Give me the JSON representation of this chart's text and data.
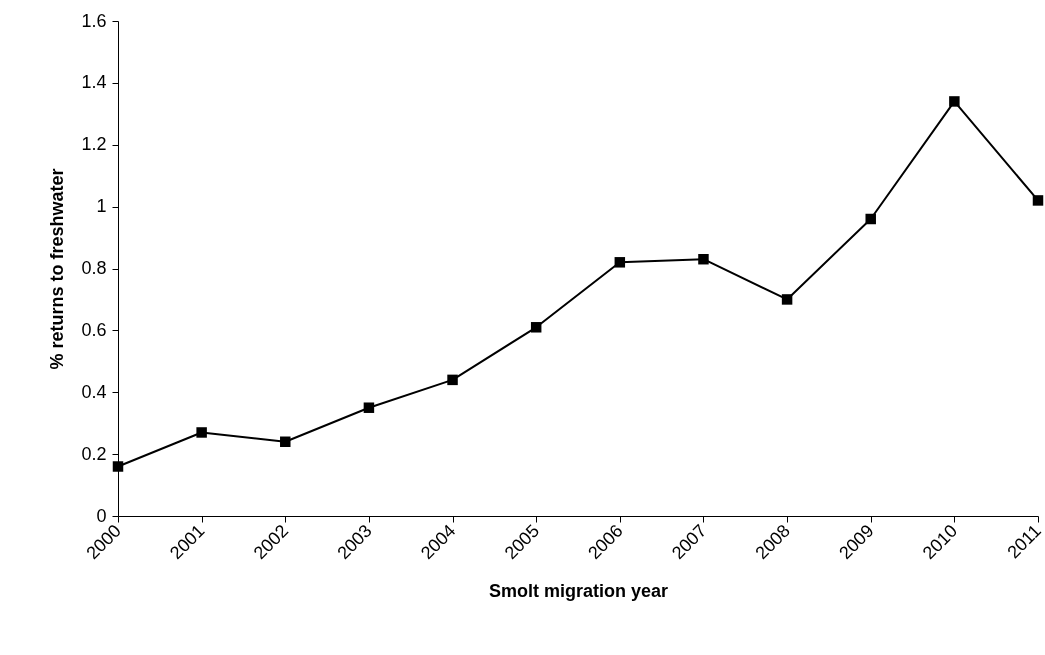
{
  "chart_data": {
    "type": "line",
    "xlabel": "Smolt migration year",
    "ylabel": "% returns to freshwater",
    "categories": [
      "2000",
      "2001",
      "2002",
      "2003",
      "2004",
      "2005",
      "2006",
      "2007",
      "2008",
      "2009",
      "2010",
      "2011"
    ],
    "series": [
      {
        "color": "#000000",
        "values": [
          0.16,
          0.27,
          0.24,
          0.35,
          0.44,
          0.61,
          0.82,
          0.83,
          0.7,
          0.96,
          1.34,
          1.02
        ]
      }
    ],
    "ylim": [
      0,
      1.6
    ],
    "yticks": [
      0,
      0.2,
      0.4,
      0.6,
      0.8,
      1,
      1.2,
      1.4,
      1.6
    ],
    "grid": false,
    "legend": false,
    "marker": "square",
    "line_style": "solid"
  }
}
